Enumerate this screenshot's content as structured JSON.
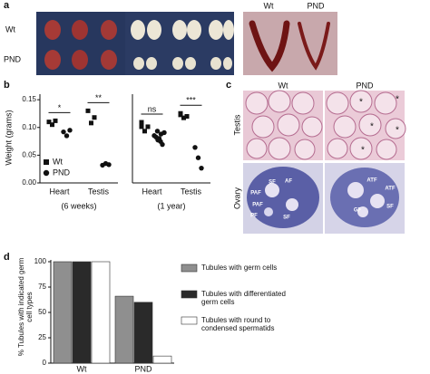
{
  "panel_a": {
    "label": "a",
    "row_labels": [
      "Wt",
      "PND"
    ],
    "uterus_labels": [
      "Wt",
      "PND"
    ]
  },
  "panel_b": {
    "label": "b",
    "y_label": "Weight (grams)",
    "legend": [
      {
        "name": "Wt",
        "marker": "square"
      },
      {
        "name": "PND",
        "marker": "circle"
      }
    ],
    "charts": [
      {
        "type": "scatter",
        "period": "(6 weeks)",
        "categories": [
          "Heart",
          "Testis"
        ],
        "ylim": [
          0,
          0.16
        ],
        "yticks": [
          {
            "value": 0,
            "label": "0.00"
          },
          {
            "value": 0.05,
            "label": "0.05"
          },
          {
            "value": 0.1,
            "label": "0.10"
          },
          {
            "value": 0.15,
            "label": "0.15"
          }
        ],
        "series": [
          {
            "name": "Wt",
            "values": [
              [
                0.11,
                0.105,
                0.112
              ],
              [
                0.13,
                0.108,
                0.118
              ]
            ]
          },
          {
            "name": "PND",
            "values": [
              [
                0.092,
                0.085,
                0.095
              ],
              [
                0.032,
                0.035,
                0.033
              ]
            ]
          }
        ],
        "significance": [
          "*",
          "**"
        ]
      },
      {
        "type": "scatter",
        "period": "(1 year)",
        "categories": [
          "Heart",
          "Testis"
        ],
        "ylim": [
          0,
          0.3
        ],
        "series": [
          {
            "name": "Wt",
            "values": [
              [
                0.19,
                0.175,
                0.19,
                0.205
              ],
              [
                0.23,
                0.22,
                0.225,
                0.235
              ]
            ]
          },
          {
            "name": "PND",
            "values": [
              [
                0.16,
                0.175,
                0.14,
                0.155,
                0.15,
                0.13,
                0.145,
                0.165,
                0.17
              ],
              [
                0.12,
                0.085,
                0.05
              ]
            ]
          }
        ],
        "significance": [
          "ns",
          "***"
        ]
      }
    ]
  },
  "panel_c": {
    "label": "c",
    "columns": [
      "Wt",
      "PND"
    ],
    "rows": [
      "Testis",
      "Ovary"
    ],
    "wt_ovary_labels": [
      "SF",
      "AF",
      "PAF",
      "PAF",
      "PF",
      "SF"
    ],
    "pnd_ovary_labels": [
      "ATF",
      "ATF",
      "GF",
      "SF"
    ],
    "pnd_testis_labels": [
      "*",
      "*",
      "*",
      "*",
      "*"
    ]
  },
  "panel_d": {
    "label": "d",
    "chart_data": {
      "type": "bar",
      "y_label": "% Tubules with indicated germ cell types",
      "categories": [
        "Wt",
        "PND"
      ],
      "ylim": [
        0,
        100
      ],
      "yticks": [
        0,
        25,
        50,
        75,
        100
      ],
      "series": [
        {
          "name": "Tubules with germ cells",
          "color": "#8f8f8f",
          "values": [
            100,
            66
          ]
        },
        {
          "name": "Tubules with differentiated germ cells",
          "color": "#2a2a2a",
          "values": [
            100,
            60
          ]
        },
        {
          "name": "Tubules with round to condensed spermatids",
          "color": "#ffffff",
          "values": [
            100,
            7
          ]
        }
      ]
    }
  }
}
